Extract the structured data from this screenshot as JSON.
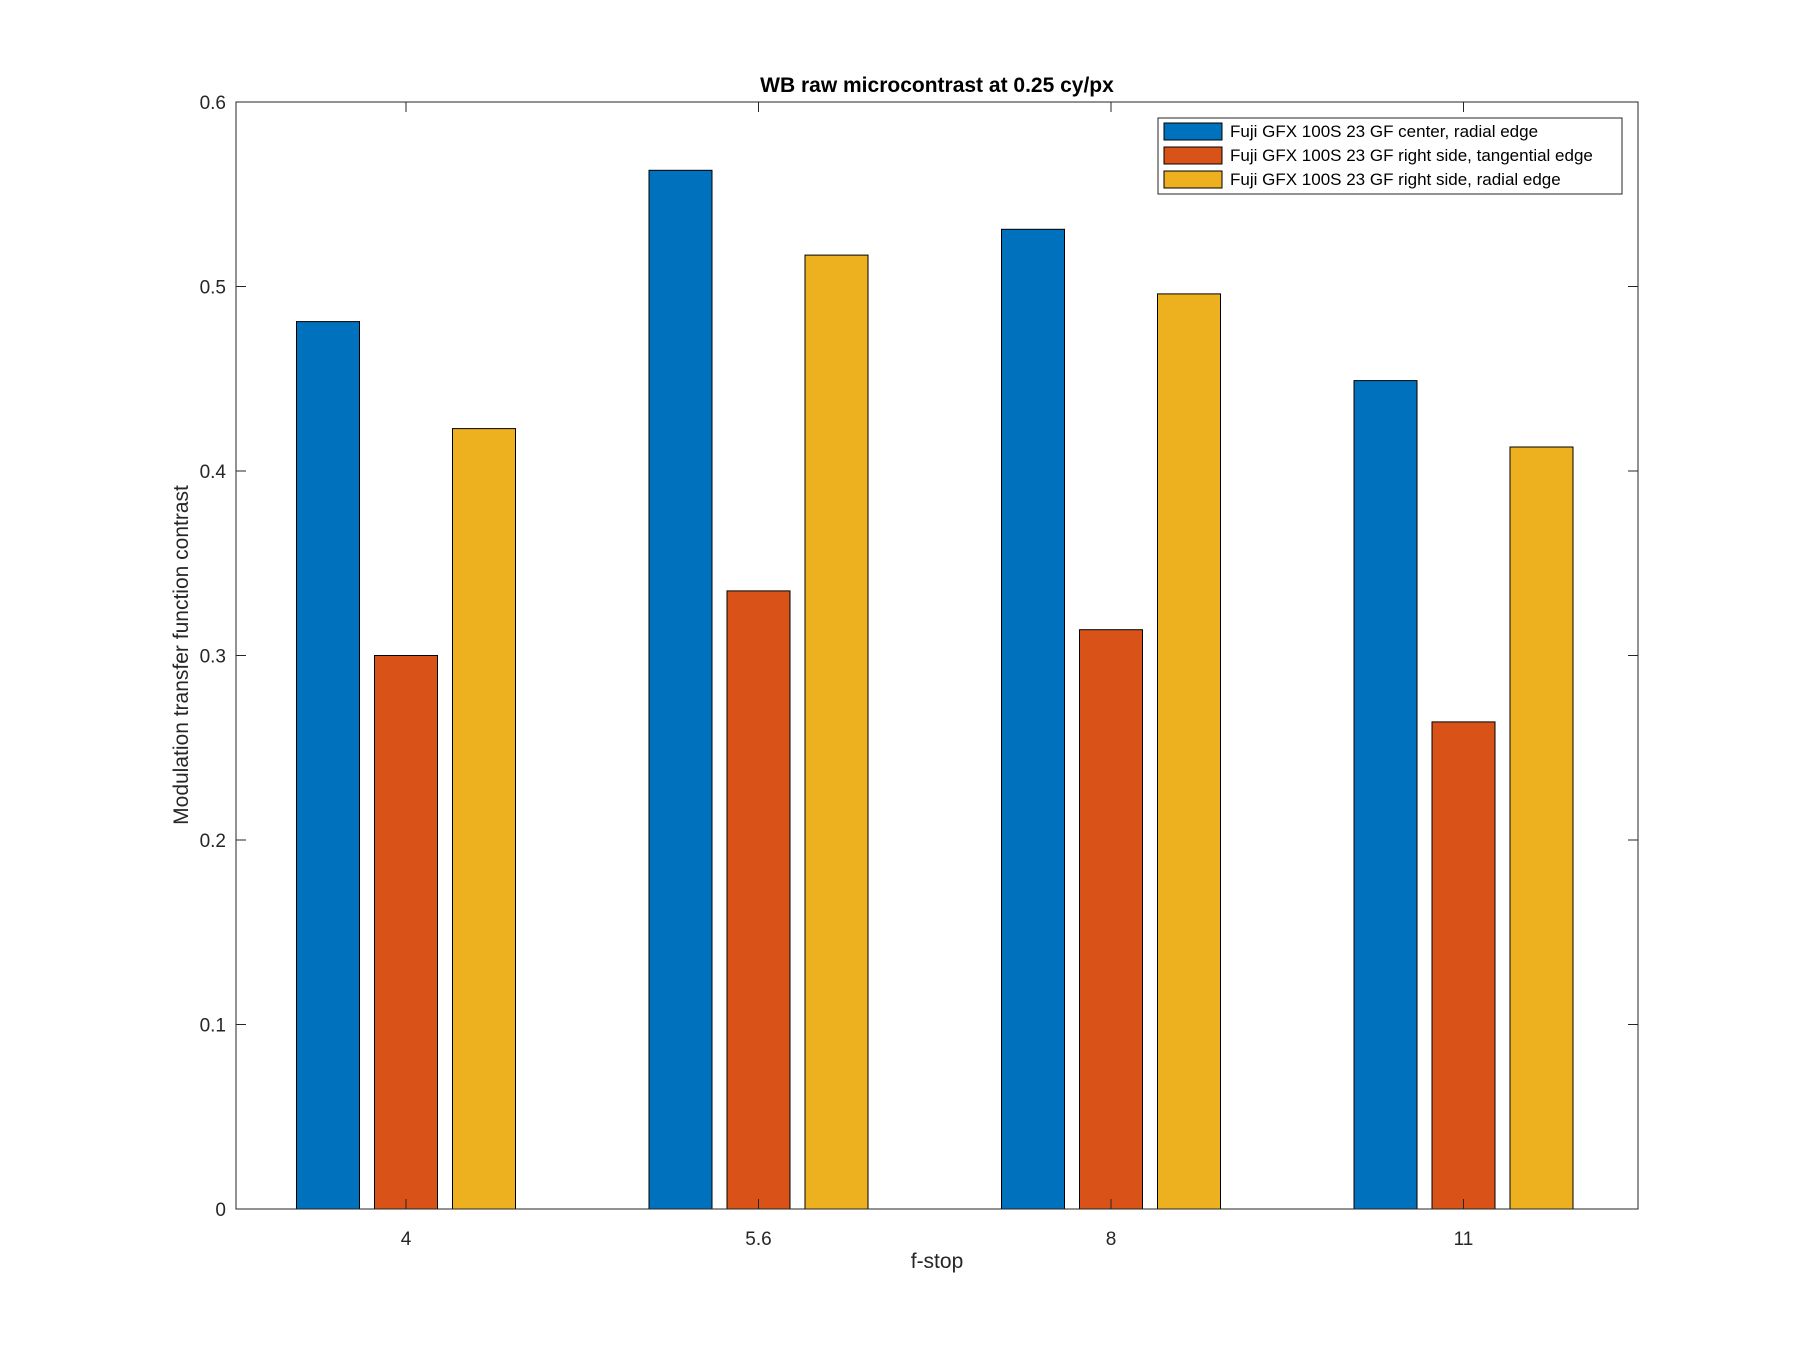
{
  "chart_data": {
    "type": "bar",
    "title": "WB raw  microcontrast at 0.25 cy/px",
    "xlabel": "f-stop",
    "ylabel": "Modulation transfer function contrast",
    "categories": [
      "4",
      "5.6",
      "8",
      "11"
    ],
    "ylim": [
      0,
      0.6
    ],
    "yticks": [
      "0",
      "0.1",
      "0.2",
      "0.3",
      "0.4",
      "0.5",
      "0.6"
    ],
    "grid": false,
    "legend_position": "top-right",
    "series": [
      {
        "name": "Fuji GFX 100S 23 GF center, radial edge",
        "color": "#0072BD",
        "values": [
          0.481,
          0.563,
          0.531,
          0.449
        ]
      },
      {
        "name": "Fuji GFX 100S 23 GF right side, tangential edge",
        "color": "#D95319",
        "values": [
          0.3,
          0.335,
          0.314,
          0.264
        ]
      },
      {
        "name": "Fuji GFX 100S 23 GF right side, radial edge",
        "color": "#EDB120",
        "values": [
          0.423,
          0.517,
          0.496,
          0.413
        ]
      }
    ]
  }
}
